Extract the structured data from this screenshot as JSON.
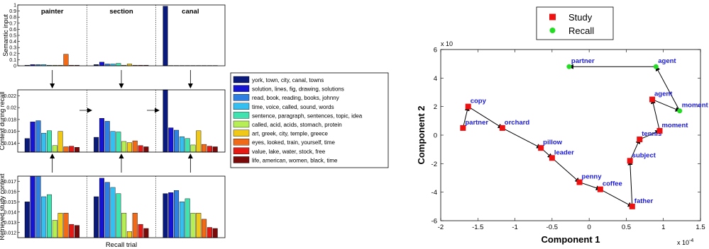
{
  "chart_data": [
    {
      "type": "bar",
      "panel": "semantic-input",
      "ylabel": "Semantic input",
      "groups": [
        "painter",
        "section",
        "canal"
      ],
      "ylim": [
        0,
        1
      ],
      "yticks": [
        "0",
        "0.1",
        "0.2",
        "0.3",
        "0.4",
        "0.5",
        "0.6",
        "0.7",
        "0.8",
        "0.9",
        "1"
      ],
      "values": [
        [
          0.01,
          0.02,
          0.02,
          0.02,
          0.01,
          0.01,
          0.01,
          0.19,
          0.01,
          0.01
        ],
        [
          0.02,
          0.06,
          0.03,
          0.03,
          0.04,
          0.01,
          0.03,
          0.01,
          0.01,
          0.01
        ],
        [
          0.98,
          0.005,
          0.005,
          0.005,
          0.005,
          0.005,
          0.005,
          0.005,
          0.005,
          0.005
        ]
      ]
    },
    {
      "type": "bar",
      "panel": "context-recall",
      "ylabel": "Context during recall",
      "ylim": [
        0.0125,
        0.023
      ],
      "yticks": [
        "0.014",
        "0.016",
        "0.018",
        "0.02",
        "0.022"
      ],
      "values": [
        [
          0.0148,
          0.0176,
          0.0178,
          0.0157,
          0.0161,
          0.0136,
          0.016,
          0.0134,
          0.0135,
          0.0133
        ],
        [
          0.015,
          0.0182,
          0.0177,
          0.016,
          0.0159,
          0.0143,
          0.0141,
          0.0144,
          0.0136,
          0.0134
        ],
        [
          0.023,
          0.0166,
          0.0162,
          0.0151,
          0.0148,
          0.0137,
          0.0161,
          0.0138,
          0.0135,
          0.0134
        ]
      ]
    },
    {
      "type": "bar",
      "panel": "retrieved-study-context",
      "ylabel": "Retrieved study context",
      "xlabel": "Recall trial",
      "ylim": [
        0.0115,
        0.0175
      ],
      "yticks": [
        "0.012",
        "0.013",
        "0.014",
        "0.015",
        "0.016",
        "0.017"
      ],
      "values": [
        [
          0.015,
          0.0175,
          0.0175,
          0.0155,
          0.0157,
          0.0132,
          0.0139,
          0.0139,
          0.0128,
          0.0127
        ],
        [
          0.0155,
          0.0173,
          0.0169,
          0.0164,
          0.0158,
          0.0139,
          0.0121,
          0.0139,
          0.0128,
          0.0124
        ],
        [
          0.0158,
          0.0159,
          0.0161,
          0.015,
          0.0153,
          0.0139,
          0.0139,
          0.0133,
          0.0125,
          0.0124
        ]
      ]
    },
    {
      "type": "legend",
      "entries": [
        "york, town, city, canal, towns",
        "solution, lines, fig, drawing, solutions",
        "read, book, reading, books, johnny",
        "time, voice, called, sound, words",
        "sentence, paragraph, sentences, topic, idea",
        "called, acid, acids, stomach, protein",
        "art, greek, city, temple, greece",
        "eyes, looked, train, yourself, time",
        "value, lake, water, stock, free",
        "life, american, women, black, time"
      ],
      "colors": [
        "#0a1a7a",
        "#1414d2",
        "#2f7fe0",
        "#35bff0",
        "#3fe3b0",
        "#b6ee55",
        "#f0c818",
        "#f06a18",
        "#e61a14",
        "#7a0a0a"
      ]
    },
    {
      "type": "scatter",
      "panel": "pca",
      "xlabel": "Component 1",
      "ylabel": "Component 2",
      "x_multiplier": "x 10",
      "x_multiplier_exp": "-4",
      "y_multiplier": "x 10",
      "y_multiplier_exp": "-6",
      "xlim": [
        -2,
        1.5
      ],
      "ylim": [
        -6,
        6
      ],
      "xticks": [
        "-2",
        "-1.5",
        "-1",
        "-0.5",
        "0",
        "0.5",
        "1",
        "1.5"
      ],
      "yticks": [
        "-6",
        "-4",
        "-2",
        "0",
        "2",
        "4",
        "6"
      ],
      "legend": [
        {
          "name": "Study",
          "color": "#ee1111",
          "marker": "square"
        },
        {
          "name": "Recall",
          "color": "#22dd22",
          "marker": "circle"
        }
      ],
      "points": [
        {
          "label": "partner",
          "x": -1.7,
          "y": 0.5,
          "kind": "study"
        },
        {
          "label": "copy",
          "x": -1.63,
          "y": 2.0,
          "kind": "study"
        },
        {
          "label": "orchard",
          "x": -1.17,
          "y": 0.5,
          "kind": "study"
        },
        {
          "label": "pillow",
          "x": -0.65,
          "y": -0.9,
          "kind": "study"
        },
        {
          "label": "leader",
          "x": -0.5,
          "y": -1.6,
          "kind": "study"
        },
        {
          "label": "penny",
          "x": -0.13,
          "y": -3.3,
          "kind": "study"
        },
        {
          "label": "coffee",
          "x": 0.15,
          "y": -3.8,
          "kind": "study"
        },
        {
          "label": "father",
          "x": 0.58,
          "y": -5.0,
          "kind": "study"
        },
        {
          "label": "subject",
          "x": 0.55,
          "y": -1.8,
          "kind": "study"
        },
        {
          "label": "tennis",
          "x": 0.68,
          "y": -0.3,
          "kind": "study"
        },
        {
          "label": "moment",
          "x": 0.95,
          "y": 0.3,
          "kind": "study"
        },
        {
          "label": "agent",
          "x": 0.85,
          "y": 2.5,
          "kind": "study"
        },
        {
          "label": "moment",
          "x": 1.22,
          "y": 1.7,
          "kind": "recall"
        },
        {
          "label": "agent",
          "x": 0.9,
          "y": 4.8,
          "kind": "recall"
        },
        {
          "label": "partner",
          "x": -0.27,
          "y": 4.8,
          "kind": "recall"
        }
      ],
      "path": [
        [
          -1.7,
          0.5
        ],
        [
          -1.63,
          2.0
        ],
        [
          -1.17,
          0.5
        ],
        [
          -0.65,
          -0.9
        ],
        [
          -0.5,
          -1.6
        ],
        [
          -0.13,
          -3.3
        ],
        [
          0.15,
          -3.8
        ],
        [
          0.58,
          -5.0
        ],
        [
          0.55,
          -1.8
        ],
        [
          0.68,
          -0.3
        ],
        [
          0.95,
          0.3
        ],
        [
          0.85,
          2.5
        ],
        [
          1.22,
          1.7
        ],
        [
          0.9,
          4.8
        ],
        [
          -0.27,
          4.8
        ]
      ]
    }
  ]
}
